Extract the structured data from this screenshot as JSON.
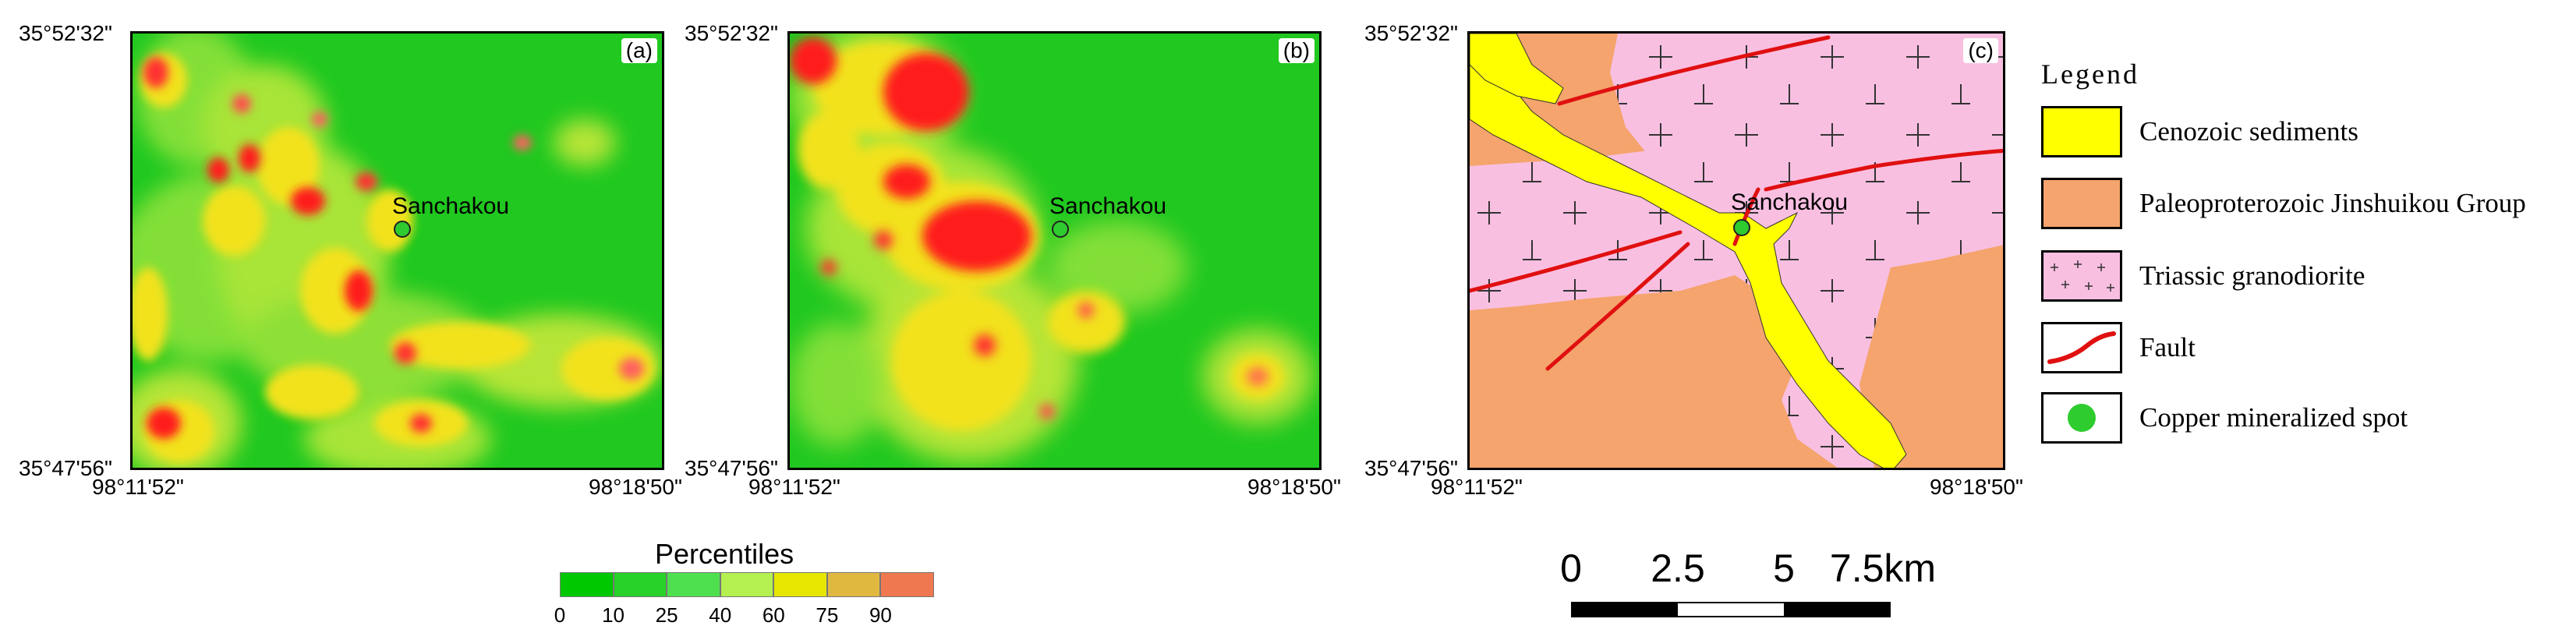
{
  "panels": [
    {
      "id": "a",
      "label": "(a)",
      "coords": {
        "top_left": "35°52'32\"",
        "bottom_left": "35°47'56\"",
        "x_left": "98°11'52\"",
        "x_right": "98°18'50\""
      },
      "site": "Sanchakou"
    },
    {
      "id": "b",
      "label": "(b)",
      "coords": {
        "top_left": "35°52'32\"",
        "bottom_left": "35°47'56\"",
        "x_left": "98°11'52\"",
        "x_right": "98°18'50\""
      },
      "site": "Sanchakou"
    },
    {
      "id": "c",
      "label": "(c)",
      "coords": {
        "top_left": "35°52'32\"",
        "bottom_left": "35°47'56\"",
        "x_left": "98°11'52\"",
        "x_right": "98°18'50\""
      },
      "site": "Sanchakou"
    }
  ],
  "legend": {
    "title": "Legend",
    "items": [
      {
        "label": "Cenozoic sediments",
        "color": "#ffff00"
      },
      {
        "label": "Paleoproterozoic Jinshuikou Group",
        "color": "#f4a46c"
      },
      {
        "label": "Triassic granodiorite",
        "color": "#f9bfe1"
      },
      {
        "label": "Fault",
        "color": "#e01010"
      },
      {
        "label": "Copper mineralized spot",
        "color": "#2ecc2e"
      }
    ]
  },
  "colorbar": {
    "title": "Percentiles",
    "ticks": [
      "0",
      "10",
      "25",
      "40",
      "60",
      "75",
      "90"
    ],
    "colors": [
      "#00c800",
      "#28d228",
      "#4ee04e",
      "#b4f050",
      "#e6e600",
      "#e0b840",
      "#f07850"
    ]
  },
  "scalebar": {
    "labels": [
      "0",
      "2.5",
      "5",
      "7.5km"
    ]
  },
  "colors": {
    "green": "#2fd12f",
    "yellow": "#eaea3a",
    "red": "#ff1a1a",
    "orange": "#f4a46c",
    "pink": "#f9bfe1",
    "fault": "#e01010"
  }
}
